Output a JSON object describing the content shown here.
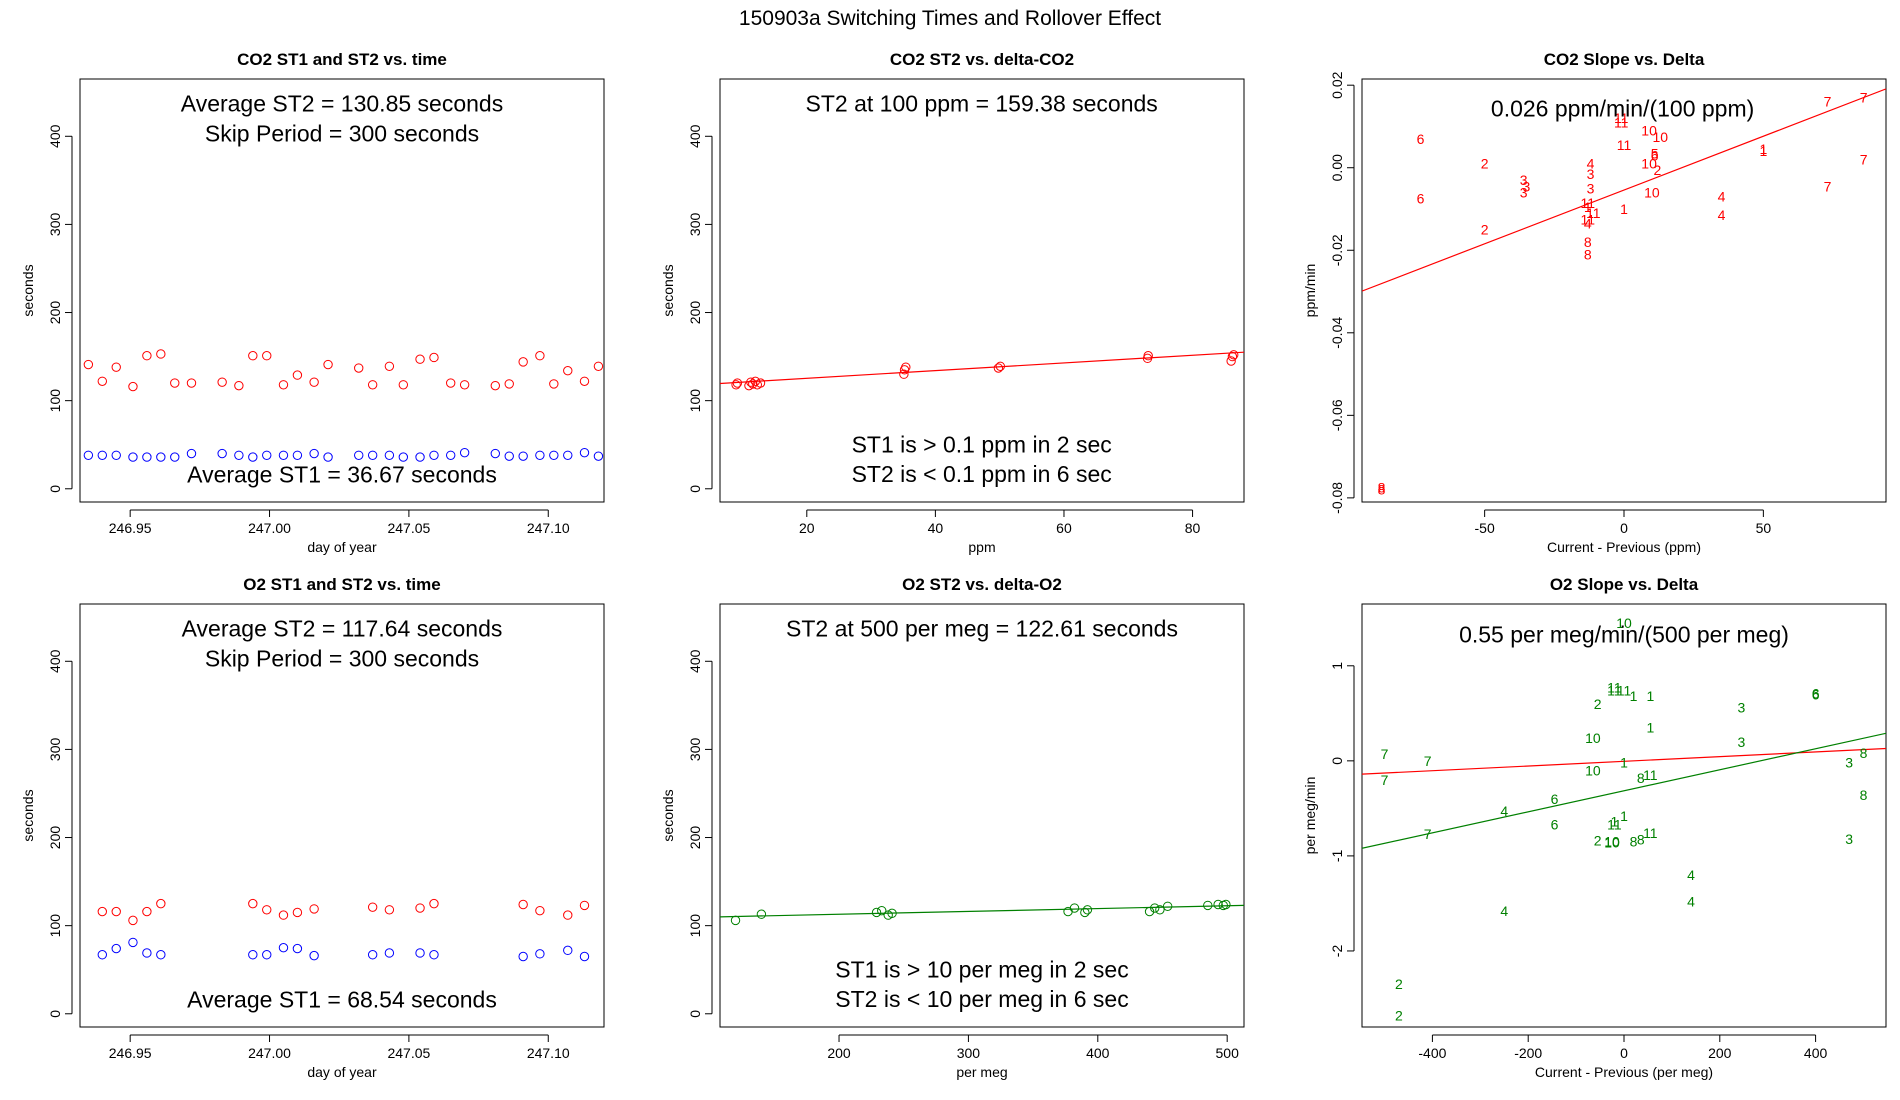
{
  "figure_title": "150903a   Switching Times and Rollover Effect",
  "colors": {
    "red": "#ff0000",
    "blue": "#0000ff",
    "green": "#008000",
    "black": "#000000"
  },
  "chart_data": [
    {
      "id": "p1",
      "type": "scatter",
      "title": "CO2 ST1 and ST2 vs. time",
      "xlabel": "day of year",
      "ylabel": "seconds",
      "xlim": [
        246.932,
        247.12
      ],
      "ylim": [
        -15,
        465
      ],
      "xticks": [
        246.95,
        247.0,
        247.05,
        247.1
      ],
      "xtick_labels": [
        "246.95",
        "247.00",
        "247.05",
        "247.10"
      ],
      "yticks": [
        0,
        100,
        200,
        300,
        400
      ],
      "ytick_labels": [
        "0",
        "100",
        "200",
        "300",
        "400"
      ],
      "annotations": [
        {
          "text": "Average ST2 =  130.85  seconds",
          "x": 247.026,
          "y": 437
        },
        {
          "text": "Skip Period =  300  seconds",
          "x": 247.026,
          "y": 403
        },
        {
          "text": "Average ST1 =  36.67  seconds",
          "x": 247.026,
          "y": 16
        }
      ],
      "series": [
        {
          "name": "ST2",
          "color": "red",
          "marker": "circle",
          "x": [
            246.935,
            246.94,
            246.945,
            246.951,
            246.956,
            246.961,
            246.966,
            246.972,
            246.983,
            246.989,
            246.994,
            246.999,
            247.005,
            247.01,
            247.016,
            247.021,
            247.032,
            247.037,
            247.043,
            247.048,
            247.054,
            247.059,
            247.065,
            247.07,
            247.081,
            247.086,
            247.091,
            247.097,
            247.102,
            247.107,
            247.113,
            247.118
          ],
          "y": [
            141,
            122,
            138,
            116,
            151,
            153,
            120,
            120,
            121,
            117,
            151,
            151,
            118,
            129,
            121,
            141,
            137,
            118,
            139,
            118,
            147,
            149,
            120,
            118,
            117,
            119,
            144,
            151,
            119,
            134,
            122,
            139
          ]
        },
        {
          "name": "ST1",
          "color": "blue",
          "marker": "circle",
          "x": [
            246.935,
            246.94,
            246.945,
            246.951,
            246.956,
            246.961,
            246.966,
            246.972,
            246.983,
            246.989,
            246.994,
            246.999,
            247.005,
            247.01,
            247.016,
            247.021,
            247.032,
            247.037,
            247.043,
            247.048,
            247.054,
            247.059,
            247.065,
            247.07,
            247.081,
            247.086,
            247.091,
            247.097,
            247.102,
            247.107,
            247.113,
            247.118
          ],
          "y": [
            38,
            38,
            38,
            36,
            36,
            36,
            36,
            40,
            40,
            38,
            36,
            38,
            38,
            38,
            40,
            36,
            38,
            38,
            38,
            36,
            36,
            38,
            38,
            41,
            40,
            37,
            37,
            38,
            38,
            38,
            41,
            37
          ]
        }
      ]
    },
    {
      "id": "p2",
      "type": "scatter",
      "title": "CO2 ST2 vs. delta-CO2",
      "xlabel": "ppm",
      "ylabel": "seconds",
      "xlim": [
        6.5,
        88
      ],
      "ylim": [
        -15,
        465
      ],
      "xticks": [
        20,
        40,
        60,
        80
      ],
      "xtick_labels": [
        "20",
        "40",
        "60",
        "80"
      ],
      "yticks": [
        0,
        100,
        200,
        300,
        400
      ],
      "ytick_labels": [
        "0",
        "100",
        "200",
        "300",
        "400"
      ],
      "annotations": [
        {
          "text": "ST2 at 100 ppm =  159.38  seconds",
          "x": 47.2,
          "y": 437
        },
        {
          "text": "ST1 is > 0.1 ppm in 2 sec",
          "x": 47.2,
          "y": 50
        },
        {
          "text": "ST2 is < 0.1 ppm in 6 sec",
          "x": 47.2,
          "y": 17
        }
      ],
      "fit_line": {
        "color": "red",
        "x": [
          6.5,
          88
        ],
        "y": [
          119.5,
          155
        ]
      },
      "series": [
        {
          "name": "ST2",
          "color": "red",
          "marker": "circle",
          "x": [
            9,
            9.2,
            11,
            11.3,
            11.6,
            12,
            12.3,
            12.8,
            35.1,
            35.2,
            35.4,
            49.8,
            50.1,
            73,
            73.1,
            86,
            86.2,
            86.4
          ],
          "y": [
            118,
            120,
            117,
            121,
            119,
            122,
            118,
            120,
            130,
            135,
            138,
            137,
            139,
            148,
            151,
            145,
            150,
            152
          ]
        }
      ]
    },
    {
      "id": "p3",
      "type": "scatter",
      "title": "CO2 Slope vs. Delta",
      "xlabel": "Current - Previous (ppm)",
      "ylabel": "ppm/min",
      "xlim": [
        -94,
        94
      ],
      "ylim": [
        -0.081,
        0.0215
      ],
      "xticks": [
        -50,
        0,
        50
      ],
      "xtick_labels": [
        "-50",
        "0",
        "50"
      ],
      "yticks": [
        -0.08,
        -0.06,
        -0.04,
        -0.02,
        0.0,
        0.02
      ],
      "ytick_labels": [
        "-0.08",
        "-0.06",
        "-0.04",
        "-0.02",
        "0.00",
        "0.02"
      ],
      "annotations": [
        {
          "text": "0.026  ppm/min/(100 ppm)",
          "x": -0.5,
          "y": 0.0143
        }
      ],
      "fit_line": {
        "color": "red",
        "x": [
          -94,
          94
        ],
        "y": [
          -0.0299,
          0.0191
        ]
      },
      "labeled_points": {
        "color": "red",
        "x": [
          -73,
          -73,
          -50,
          -50,
          -36,
          -36,
          -35,
          -12,
          -12,
          -12,
          -13,
          -13,
          -11,
          -13,
          -13,
          -13,
          -13,
          0,
          -1,
          -1,
          0,
          9,
          9,
          10,
          13,
          11,
          12,
          11,
          50,
          50,
          73,
          73,
          86,
          86,
          35,
          35,
          -87,
          -87
        ],
        "y": [
          0.007,
          -0.0075,
          0.001,
          -0.015,
          -0.003,
          -0.006,
          -0.0045,
          0.001,
          -0.0015,
          -0.005,
          -0.018,
          -0.021,
          -0.011,
          -0.0125,
          -0.0135,
          -0.0085,
          -0.0095,
          -0.01,
          0.011,
          0.012,
          0.0055,
          0.009,
          0.001,
          -0.006,
          0.0075,
          0.003,
          -0.0005,
          0.0035,
          0.004,
          0.0045,
          0.016,
          -0.0045,
          0.017,
          0.002,
          -0.007,
          -0.0115,
          -0.0775,
          -0.078
        ],
        "labels": [
          "6",
          "6",
          "2",
          "2",
          "3",
          "3",
          "3",
          "4",
          "3",
          "3",
          "8",
          "8",
          "11",
          "11",
          "4",
          "11",
          "1",
          "1",
          "11",
          "11",
          "11",
          "10",
          "10",
          "10",
          "10",
          "6",
          "2",
          "5",
          "1",
          "1",
          "7",
          "7",
          "7",
          "7",
          "4",
          "4",
          "8",
          "8"
        ]
      }
    },
    {
      "id": "p4",
      "type": "scatter",
      "title": "O2 ST1 and ST2 vs. time",
      "xlabel": "day of year",
      "ylabel": "seconds",
      "xlim": [
        246.932,
        247.12
      ],
      "ylim": [
        -15,
        465
      ],
      "xticks": [
        246.95,
        247.0,
        247.05,
        247.1
      ],
      "xtick_labels": [
        "246.95",
        "247.00",
        "247.05",
        "247.10"
      ],
      "yticks": [
        0,
        100,
        200,
        300,
        400
      ],
      "ytick_labels": [
        "0",
        "100",
        "200",
        "300",
        "400"
      ],
      "annotations": [
        {
          "text": "Average ST2 =  117.64  seconds",
          "x": 247.026,
          "y": 437
        },
        {
          "text": "Skip Period =  300  seconds",
          "x": 247.026,
          "y": 403
        },
        {
          "text": "Average ST1 =  68.54  seconds",
          "x": 247.026,
          "y": 16
        }
      ],
      "series": [
        {
          "name": "ST2",
          "color": "red",
          "marker": "circle",
          "x": [
            246.94,
            246.945,
            246.951,
            246.956,
            246.961,
            246.994,
            246.999,
            247.005,
            247.01,
            247.016,
            247.037,
            247.043,
            247.054,
            247.059,
            247.091,
            247.097,
            247.107,
            247.113
          ],
          "y": [
            116,
            116,
            106,
            116,
            125,
            125,
            118,
            112,
            115,
            119,
            121,
            118,
            120,
            125,
            124,
            117,
            112,
            123
          ]
        },
        {
          "name": "ST1",
          "color": "blue",
          "marker": "circle",
          "x": [
            246.94,
            246.945,
            246.951,
            246.956,
            246.961,
            246.994,
            246.999,
            247.005,
            247.01,
            247.016,
            247.037,
            247.043,
            247.054,
            247.059,
            247.091,
            247.097,
            247.107,
            247.113
          ],
          "y": [
            67,
            74,
            81,
            69,
            67,
            67,
            67,
            75,
            74,
            66,
            67,
            69,
            69,
            67,
            65,
            68,
            72,
            65
          ]
        }
      ]
    },
    {
      "id": "p5",
      "type": "scatter",
      "title": "O2 ST2 vs. delta-O2",
      "xlabel": "per meg",
      "ylabel": "seconds",
      "xlim": [
        108,
        513
      ],
      "ylim": [
        -15,
        465
      ],
      "xticks": [
        200,
        300,
        400,
        500
      ],
      "xtick_labels": [
        "200",
        "300",
        "400",
        "500"
      ],
      "yticks": [
        0,
        100,
        200,
        300,
        400
      ],
      "ytick_labels": [
        "0",
        "100",
        "200",
        "300",
        "400"
      ],
      "annotations": [
        {
          "text": "ST2 at 500 per meg =  122.61  seconds",
          "x": 310.5,
          "y": 437
        },
        {
          "text": "ST1 is > 10 per meg in 2 sec",
          "x": 310.5,
          "y": 50
        },
        {
          "text": "ST2 is < 10 per meg in 6 sec",
          "x": 310.5,
          "y": 17
        }
      ],
      "fit_line": {
        "color": "green",
        "x": [
          108,
          513
        ],
        "y": [
          110,
          123
        ]
      },
      "series": [
        {
          "name": "ST2",
          "color": "green",
          "marker": "circle",
          "x": [
            120,
            140,
            229,
            233,
            238,
            241,
            377,
            382,
            390,
            392,
            440,
            444,
            448,
            454,
            485,
            493,
            497,
            499
          ],
          "y": [
            106,
            113,
            115,
            117,
            112,
            114,
            116,
            120,
            115,
            118,
            116,
            120,
            118,
            122,
            123,
            124,
            123,
            124
          ]
        }
      ]
    },
    {
      "id": "p6",
      "type": "scatter",
      "title": "O2 Slope vs. Delta",
      "xlabel": "Current - Previous (per meg)",
      "ylabel": "per meg/min",
      "xlim": [
        -547,
        547
      ],
      "ylim": [
        -2.8,
        1.65
      ],
      "xticks": [
        -400,
        -200,
        0,
        200,
        400
      ],
      "xtick_labels": [
        "-400",
        "-200",
        "0",
        "200",
        "400"
      ],
      "yticks": [
        -2,
        -1,
        0,
        1
      ],
      "ytick_labels": [
        "-2",
        "-1",
        "0",
        "1"
      ],
      "annotations": [
        {
          "text": "0.55  per meg/min/(500 per meg)",
          "x": 0,
          "y": 1.33
        }
      ],
      "fit_lines": [
        {
          "color": "red",
          "x": [
            -547,
            547
          ],
          "y": [
            -0.14,
            0.13
          ]
        },
        {
          "color": "green",
          "x": [
            -547,
            547
          ],
          "y": [
            -0.92,
            0.29
          ]
        }
      ],
      "labeled_points": {
        "color": "green",
        "x": [
          -500,
          -500,
          -410,
          -410,
          -470,
          -470,
          -250,
          -250,
          -145,
          -145,
          -55,
          -55,
          -65,
          -65,
          -20,
          -20,
          -25,
          -25,
          0,
          0,
          0,
          0,
          20,
          20,
          35,
          35,
          55,
          55,
          55,
          55,
          140,
          140,
          245,
          245,
          400,
          400,
          500,
          500,
          470,
          470,
          -20,
          -20
        ],
        "y": [
          0.07,
          -0.2,
          0.0,
          -0.77,
          -2.35,
          -2.68,
          -0.53,
          -1.58,
          -0.4,
          -0.67,
          0.6,
          -0.84,
          0.24,
          -0.1,
          0.74,
          -0.67,
          -0.85,
          -0.86,
          -0.02,
          -0.58,
          1.45,
          0.74,
          0.68,
          -0.85,
          -0.18,
          -0.83,
          -0.15,
          -0.76,
          0.35,
          0.68,
          -1.2,
          -1.48,
          0.56,
          0.2,
          0.71,
          0.7,
          0.08,
          -0.36,
          -0.02,
          -0.82,
          -0.64,
          0.77
        ],
        "labels": [
          "7",
          "7",
          "7",
          "7",
          "2",
          "2",
          "4",
          "4",
          "6",
          "6",
          "2",
          "2",
          "10",
          "10",
          "11",
          "11",
          "10",
          "10",
          "1",
          "1",
          "10",
          "11",
          "1",
          "8",
          "8",
          "8",
          "11",
          "11",
          "1",
          "1",
          "4",
          "4",
          "3",
          "3",
          "6",
          "6",
          "8",
          "8",
          "3",
          "3",
          "1",
          "11"
        ]
      }
    }
  ]
}
